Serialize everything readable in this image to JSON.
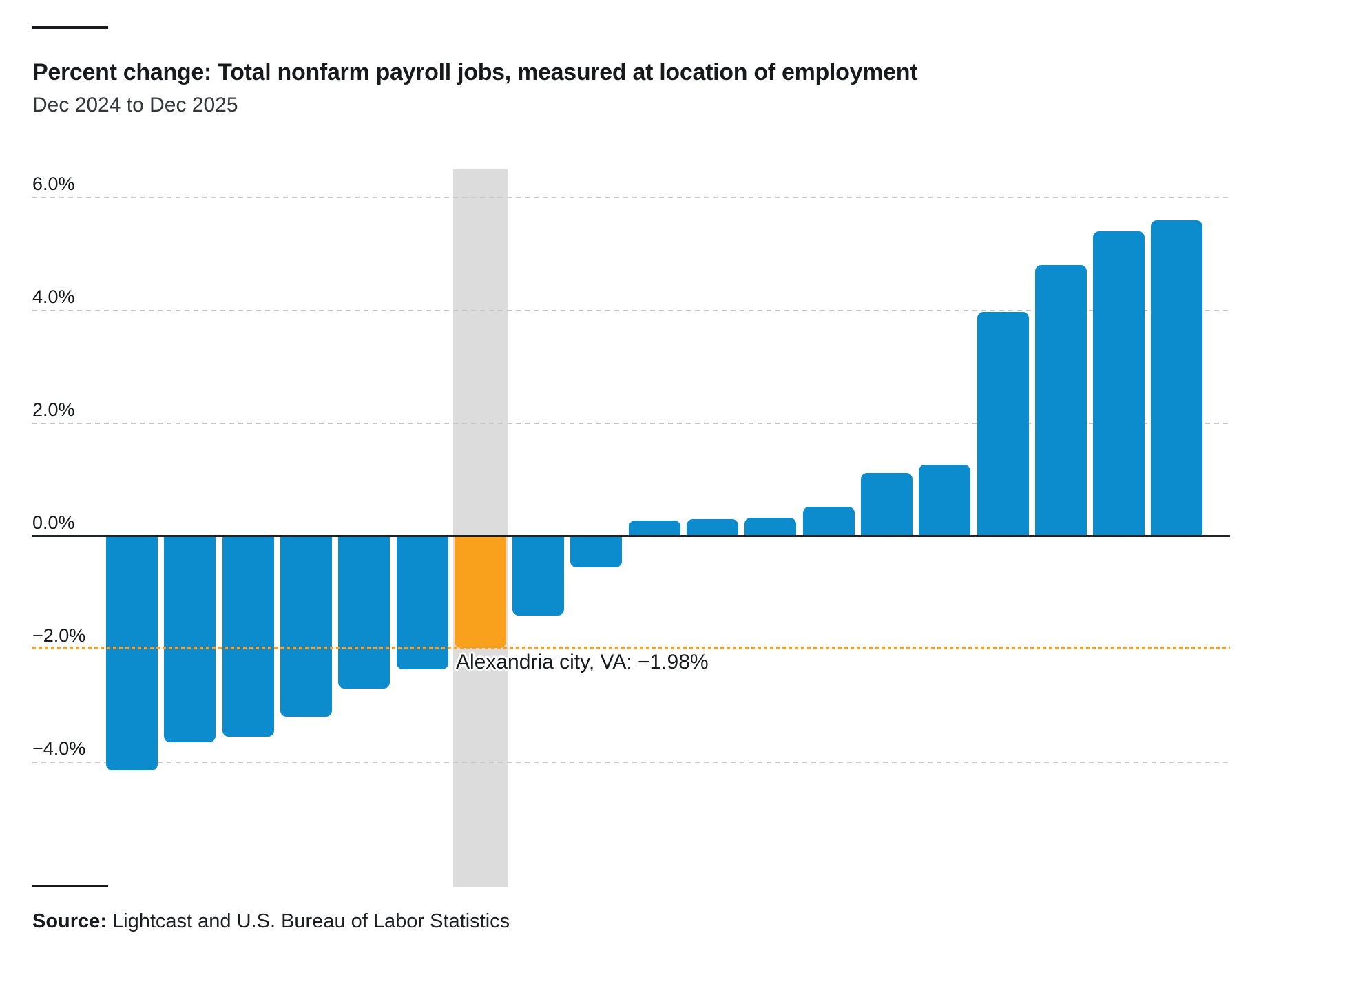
{
  "header": {
    "title": "Percent change: Total nonfarm payroll jobs, measured at location of employment",
    "subtitle": "Dec 2024 to Dec 2025"
  },
  "chart_data": {
    "type": "bar",
    "title": "Percent change: Total nonfarm payroll jobs, measured at location of employment",
    "subtitle": "Dec 2024 to Dec 2025",
    "xlabel": "",
    "ylabel": "",
    "unit": "%",
    "values": [
      -4.15,
      -3.65,
      -3.55,
      -3.2,
      -2.7,
      -2.35,
      -1.98,
      -1.4,
      -0.55,
      0.28,
      0.3,
      0.33,
      0.52,
      1.12,
      1.27,
      3.98,
      4.8,
      5.4,
      5.6
    ],
    "highlight": {
      "index": 6,
      "name": "Alexandria city, VA",
      "value": -1.98,
      "label": "Alexandria city, VA: −1.98%"
    },
    "yticks": [
      {
        "value": 6,
        "label": "6.0%"
      },
      {
        "value": 4,
        "label": "4.0%"
      },
      {
        "value": 2,
        "label": "2.0%"
      },
      {
        "value": 0,
        "label": "0.0%"
      },
      {
        "value": -2,
        "label": "−2.0%"
      },
      {
        "value": -4,
        "label": "−4.0%"
      }
    ],
    "ylim": [
      -4.6,
      6.5
    ],
    "grid": true,
    "legend": null,
    "reference_line": {
      "value": -1.98
    }
  },
  "colors": {
    "bar": "#0d8ccd",
    "highlight_bar": "#f9a01d",
    "highlight_band": "#dcdcdc",
    "gridline": "#c6c6c6",
    "reference_line": "#f6a12f",
    "axis": "#1f2124",
    "text": "#17191d"
  },
  "source": {
    "prefix": "Source:",
    "text": " Lightcast and U.S. Bureau of Labor Statistics"
  }
}
